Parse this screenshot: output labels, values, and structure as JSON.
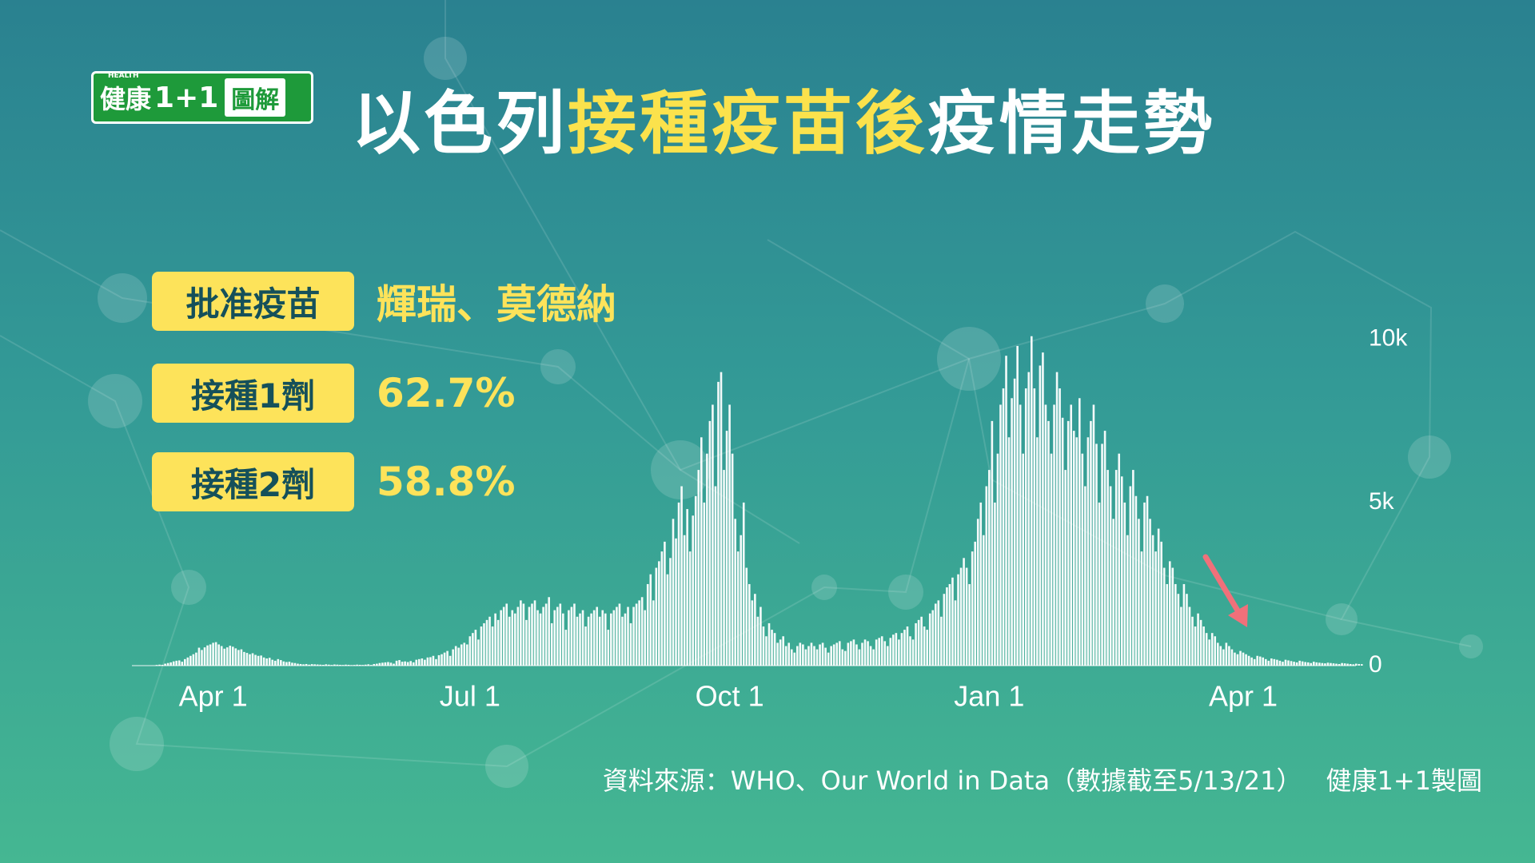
{
  "logo": {
    "small": "HEALTH",
    "brand": "健康",
    "num": "1+1",
    "suffix": "圖解"
  },
  "header": {
    "title_parts": [
      "以色列",
      "接種疫苗後",
      "疫情走勢"
    ]
  },
  "info": [
    {
      "label": "批准疫苗",
      "value": "輝瑞、莫德納"
    },
    {
      "label": "接種1劑",
      "value": "62.7%"
    },
    {
      "label": "接種2劑",
      "value": "58.8%"
    }
  ],
  "chart_data": {
    "type": "bar",
    "color": "#ffffff",
    "ylim": [
      0,
      11000
    ],
    "yticks": [
      0,
      {
        "value": 5000,
        "label": "5k"
      },
      {
        "value": 10000,
        "label": "10k"
      }
    ],
    "grid": false,
    "categories": [
      null,
      null,
      null,
      null,
      null,
      null,
      null,
      null,
      null,
      null,
      null,
      null,
      null,
      null,
      null,
      null,
      null,
      null,
      null,
      null,
      "Apr 1",
      null,
      null,
      null,
      null,
      null,
      null,
      null,
      null,
      null,
      null,
      null,
      null,
      null,
      null,
      null,
      null,
      null,
      null,
      null,
      null,
      null,
      null,
      null,
      null,
      null,
      null,
      null,
      null,
      null,
      null,
      null,
      null,
      null,
      null,
      null,
      null,
      null,
      null,
      null,
      null,
      null,
      null,
      null,
      null,
      null,
      null,
      null,
      null,
      null,
      null,
      null,
      null,
      null,
      null,
      null,
      null,
      null,
      null,
      null,
      null,
      null,
      null,
      null,
      null,
      null,
      null,
      null,
      null,
      null,
      null,
      null,
      null,
      null,
      null,
      null,
      null,
      null,
      null,
      null,
      null,
      null,
      null,
      null,
      null,
      null,
      null,
      null,
      null,
      null,
      null,
      "Jul 1",
      null,
      null,
      null,
      null,
      null,
      null,
      null,
      null,
      null,
      null,
      null,
      null,
      null,
      null,
      null,
      null,
      null,
      null,
      null,
      null,
      null,
      null,
      null,
      null,
      null,
      null,
      null,
      null,
      null,
      null,
      null,
      null,
      null,
      null,
      null,
      null,
      null,
      null,
      null,
      null,
      null,
      null,
      null,
      null,
      null,
      null,
      null,
      null,
      null,
      null,
      null,
      null,
      null,
      null,
      null,
      null,
      null,
      null,
      null,
      null,
      null,
      null,
      null,
      null,
      null,
      null,
      null,
      null,
      null,
      null,
      null,
      null,
      null,
      null,
      null,
      null,
      null,
      null,
      null,
      null,
      null,
      null,
      null,
      null,
      null,
      null,
      null,
      null,
      null,
      null,
      null,
      "Oct 1",
      null,
      null,
      null,
      null,
      null,
      null,
      null,
      null,
      null,
      null,
      null,
      null,
      null,
      null,
      null,
      null,
      null,
      null,
      null,
      null,
      null,
      null,
      null,
      null,
      null,
      null,
      null,
      null,
      null,
      null,
      null,
      null,
      null,
      null,
      null,
      null,
      null,
      null,
      null,
      null,
      null,
      null,
      null,
      null,
      null,
      null,
      null,
      null,
      null,
      null,
      null,
      null,
      null,
      null,
      null,
      null,
      null,
      null,
      null,
      null,
      null,
      null,
      null,
      null,
      null,
      null,
      null,
      null,
      null,
      null,
      null,
      null,
      null,
      null,
      null,
      null,
      null,
      null,
      null,
      null,
      null,
      null,
      null,
      null,
      null,
      null,
      null,
      null,
      null,
      null,
      null,
      "Jan 1",
      null,
      null,
      null,
      null,
      null,
      null,
      null,
      null,
      null,
      null,
      null,
      null,
      null,
      null,
      null,
      null,
      null,
      null,
      null,
      null,
      null,
      null,
      null,
      null,
      null,
      null,
      null,
      null,
      null,
      null,
      null,
      null,
      null,
      null,
      null,
      null,
      null,
      null,
      null,
      null,
      null,
      null,
      null,
      null,
      null,
      null,
      null,
      null,
      null,
      null,
      null,
      null,
      null,
      null,
      null,
      null,
      null,
      null,
      null,
      null,
      null,
      null,
      null,
      null,
      null,
      null,
      null,
      null,
      null,
      null,
      null,
      null,
      null,
      null,
      null,
      null,
      null,
      null,
      null,
      null,
      null,
      null,
      null,
      null,
      null,
      null,
      null,
      null,
      null,
      "Apr 1",
      null,
      null,
      null,
      null,
      null,
      null,
      null,
      null,
      null,
      null,
      null,
      null,
      null,
      null,
      null,
      null,
      null,
      null,
      null,
      null,
      null,
      null,
      null,
      null,
      null,
      null,
      null,
      null,
      null,
      null,
      null,
      null,
      null,
      null,
      null,
      null,
      null,
      null,
      null,
      null,
      null,
      null
    ],
    "values": [
      20,
      30,
      25,
      60,
      80,
      100,
      130,
      150,
      160,
      120,
      200,
      250,
      300,
      350,
      400,
      550,
      480,
      560,
      620,
      650,
      700,
      720,
      650,
      600,
      520,
      560,
      610,
      580,
      530,
      480,
      500,
      420,
      390,
      350,
      380,
      330,
      300,
      310,
      250,
      220,
      240,
      180,
      150,
      200,
      170,
      130,
      110,
      120,
      90,
      80,
      60,
      50,
      40,
      50,
      30,
      45,
      40,
      35,
      30,
      25,
      40,
      30,
      20,
      35,
      30,
      25,
      20,
      30,
      25,
      15,
      20,
      30,
      25,
      20,
      30,
      40,
      20,
      50,
      60,
      80,
      90,
      100,
      110,
      90,
      60,
      150,
      170,
      120,
      130,
      110,
      140,
      100,
      180,
      200,
      220,
      180,
      250,
      260,
      300,
      200,
      320,
      350,
      400,
      450,
      300,
      500,
      600,
      550,
      650,
      700,
      650,
      900,
      1000,
      1100,
      800,
      1200,
      1300,
      1400,
      1500,
      1200,
      1600,
      1400,
      1700,
      1800,
      1900,
      1500,
      1700,
      1600,
      1800,
      2000,
      1900,
      1400,
      1800,
      1900,
      2000,
      1700,
      1600,
      1800,
      1900,
      2100,
      1300,
      1700,
      1800,
      1900,
      1600,
      1100,
      1700,
      1800,
      1900,
      1500,
      1600,
      1700,
      1200,
      1500,
      1600,
      1700,
      1800,
      1500,
      1700,
      1600,
      1100,
      1600,
      1700,
      1800,
      1900,
      1500,
      1600,
      1800,
      1300,
      1800,
      1900,
      2000,
      2100,
      1700,
      2500,
      2800,
      2000,
      3000,
      3200,
      3500,
      3800,
      2800,
      3300,
      4500,
      3900,
      5000,
      5500,
      4000,
      4800,
      3500,
      4600,
      5200,
      6000,
      7000,
      5000,
      6500,
      7500,
      8000,
      5500,
      8700,
      9000,
      6000,
      7200,
      8000,
      6500,
      4500,
      3500,
      4000,
      5000,
      3000,
      2500,
      2000,
      2200,
      1500,
      1800,
      1200,
      900,
      1300,
      1100,
      1000,
      700,
      800,
      900,
      600,
      700,
      500,
      400,
      600,
      700,
      650,
      500,
      600,
      700,
      600,
      500,
      650,
      700,
      550,
      400,
      600,
      650,
      700,
      750,
      500,
      450,
      700,
      750,
      800,
      650,
      500,
      700,
      800,
      750,
      600,
      500,
      800,
      850,
      900,
      750,
      600,
      850,
      950,
      1000,
      800,
      1000,
      1100,
      1200,
      900,
      800,
      1300,
      1400,
      1500,
      1200,
      1100,
      1600,
      1700,
      1900,
      2000,
      1500,
      2200,
      2400,
      2500,
      2700,
      2000,
      2800,
      3000,
      3300,
      3000,
      2500,
      3500,
      3800,
      4500,
      5000,
      4000,
      5500,
      6000,
      7500,
      5000,
      6500,
      8000,
      8500,
      9500,
      7000,
      8200,
      8800,
      9800,
      8000,
      6500,
      8500,
      9000,
      10100,
      8500,
      7000,
      9200,
      9600,
      8000,
      7500,
      6500,
      8000,
      9000,
      8500,
      7600,
      6000,
      7500,
      8000,
      7200,
      7000,
      8200,
      6500,
      5500,
      7000,
      7500,
      8000,
      6800,
      5000,
      6800,
      7200,
      6000,
      5500,
      4500,
      6000,
      6500,
      5800,
      5000,
      4000,
      5500,
      6000,
      5200,
      4500,
      3500,
      5000,
      5200,
      4500,
      4000,
      3500,
      4200,
      3800,
      3000,
      2500,
      3200,
      3000,
      2500,
      2200,
      1800,
      2500,
      2200,
      1800,
      1500,
      1200,
      1600,
      1400,
      1200,
      1000,
      800,
      1000,
      900,
      700,
      600,
      500,
      700,
      600,
      500,
      400,
      350,
      450,
      400,
      350,
      300,
      250,
      200,
      300,
      280,
      250,
      200,
      150,
      220,
      200,
      180,
      150,
      120,
      180,
      160,
      140,
      120,
      100,
      150,
      130,
      110,
      100,
      80,
      120,
      100,
      90,
      80,
      70,
      90,
      80,
      70,
      60,
      50,
      80,
      70,
      60,
      50,
      40,
      60,
      50,
      45
    ]
  },
  "source": [
    "資料來源：WHO、Our World in Data（數據截至5/13/21）",
    "健康1+1製圖"
  ]
}
